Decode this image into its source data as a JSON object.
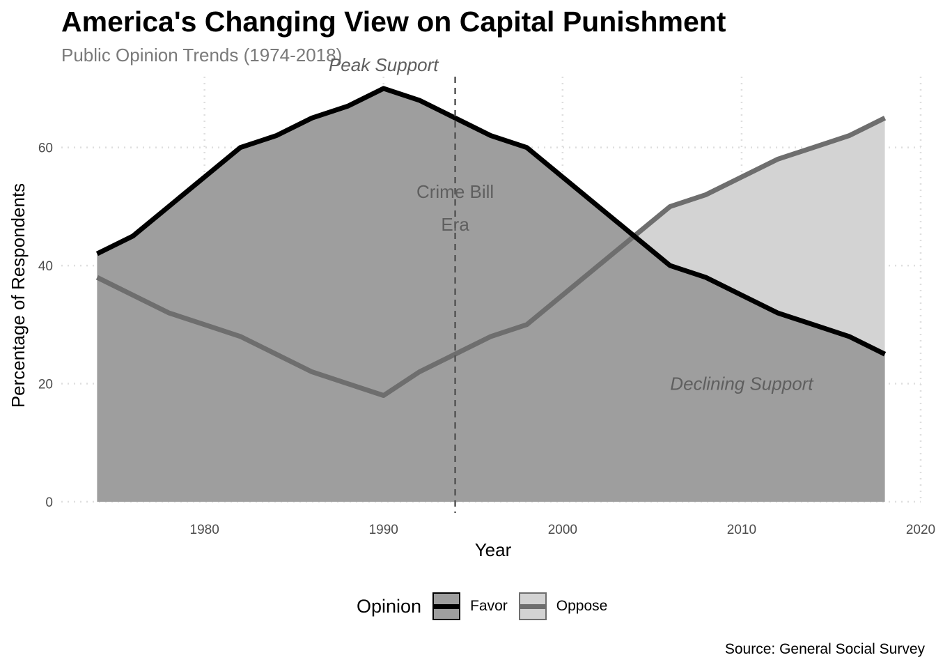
{
  "page": {
    "title": "America's Changing View on Capital Punishment",
    "subtitle": "Public Opinion Trends (1974-2018)",
    "caption": "Source: General Social Survey"
  },
  "legend": {
    "title": "Opinion",
    "entries": [
      {
        "label": "Favor",
        "fill": "#9e9e9e",
        "line": "#000000"
      },
      {
        "label": "Oppose",
        "fill": "#d3d3d3",
        "line": "#6e6e6e"
      }
    ]
  },
  "chart_data": {
    "type": "area",
    "title": "America's Changing View on Capital Punishment",
    "subtitle": "Public Opinion Trends (1974-2018)",
    "xlabel": "Year",
    "ylabel": "Percentage of Respondents",
    "xlim": [
      1972,
      2020
    ],
    "ylim": [
      0,
      72
    ],
    "x_ticks": [
      1980,
      1990,
      2000,
      2010,
      2020
    ],
    "y_ticks": [
      0,
      20,
      40,
      60
    ],
    "grid": true,
    "legend_position": "bottom",
    "x": [
      1974,
      1976,
      1978,
      1980,
      1982,
      1984,
      1986,
      1988,
      1990,
      1992,
      1994,
      1996,
      1998,
      2000,
      2002,
      2004,
      2006,
      2008,
      2010,
      2012,
      2014,
      2016,
      2018
    ],
    "series": [
      {
        "name": "Favor",
        "fill": "#9e9e9e",
        "line": "#000000",
        "values": [
          42,
          45,
          50,
          55,
          60,
          62,
          65,
          67,
          70,
          68,
          65,
          62,
          60,
          55,
          50,
          45,
          40,
          38,
          35,
          32,
          30,
          28,
          25
        ]
      },
      {
        "name": "Oppose",
        "fill": "#d3d3d3",
        "line": "#6e6e6e",
        "values": [
          38,
          35,
          32,
          30,
          28,
          25,
          22,
          20,
          18,
          22,
          25,
          28,
          30,
          35,
          40,
          45,
          50,
          52,
          55,
          58,
          60,
          62,
          65
        ]
      }
    ],
    "reference_line": {
      "x": 1994
    },
    "annotations": [
      {
        "text": "Peak Support",
        "x": 1990,
        "y": 74,
        "italic": true
      },
      {
        "text": "Crime Bill",
        "x": 1994,
        "y": 52.5,
        "italic": false
      },
      {
        "text": "Era",
        "x": 1994,
        "y": 47,
        "italic": false
      },
      {
        "text": "Declining Support",
        "x": 2010,
        "y": 20,
        "italic": true
      }
    ]
  }
}
